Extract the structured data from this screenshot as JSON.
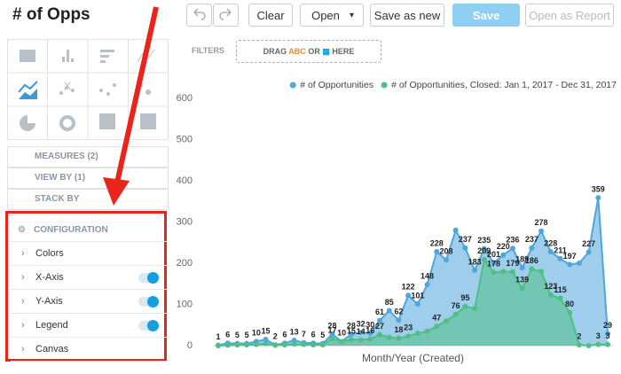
{
  "header": {
    "title": "# of Opps"
  },
  "toolbar": {
    "buttons": [
      "Clear",
      "Open",
      "Save as new",
      "Save",
      "Open as Report"
    ]
  },
  "filters": {
    "label": "FILTERS",
    "drop_hint": [
      "DRAG",
      "ABC",
      "OR",
      "HERE"
    ]
  },
  "sidebar": {
    "sections": [
      "MEASURES (2)",
      "VIEW BY (1)",
      "STACK BY"
    ],
    "configuration": {
      "title": "CONFIGURATION",
      "items": [
        {
          "label": "Colors"
        },
        {
          "label": "X-Axis",
          "toggle": true
        },
        {
          "label": "Y-Axis",
          "toggle": true
        },
        {
          "label": "Legend",
          "toggle": true
        },
        {
          "label": "Canvas"
        }
      ]
    }
  },
  "chart_data": {
    "type": "area",
    "x_title": "Month/Year (Created)",
    "legend": "top-right",
    "grid": false,
    "categories": [
      null,
      null,
      null,
      null,
      null,
      null,
      null,
      null,
      null,
      null,
      null,
      null,
      null,
      null,
      null,
      null,
      null,
      null,
      null,
      null,
      null,
      null,
      null,
      null,
      null,
      null,
      null,
      null,
      null,
      null,
      null,
      null,
      null,
      null,
      null,
      null,
      null,
      null,
      null,
      null,
      null,
      null
    ],
    "ylim": [
      0,
      600
    ],
    "yticks": [
      0,
      100,
      200,
      300,
      400,
      500,
      600
    ],
    "series": [
      {
        "name": "# of Opportunities",
        "color": "#4ea6dc",
        "values": [
          1,
          6,
          5,
          5,
          10,
          15,
          2,
          6,
          13,
          7,
          6,
          5,
          28,
          10,
          28,
          32,
          30,
          61,
          85,
          62,
          122,
          101,
          148,
          228,
          208,
          280,
          237,
          183,
          235,
          201,
          220,
          236,
          189,
          237,
          278,
          228,
          211,
          197,
          200,
          227,
          359,
          29
        ],
        "value_labels": [
          "1",
          "6",
          "5",
          "5",
          "10",
          "15",
          "2",
          "6",
          "13",
          "7",
          "6",
          "5",
          "28",
          "10",
          "28",
          "32",
          "30",
          "61",
          "85",
          "62",
          "122",
          "101",
          "148",
          "228",
          "208",
          null,
          "237",
          "183",
          "235",
          "201",
          "220",
          "236",
          "189",
          "237",
          "278",
          "228",
          "211",
          "197",
          null,
          "227",
          "359",
          "29"
        ]
      },
      {
        "name": "# of Opportunities, Closed: Jan 1, 2017 - Dec 31, 2017",
        "color": "#4fbf85",
        "values": [
          0,
          1,
          2,
          2,
          3,
          5,
          1,
          2,
          4,
          3,
          2,
          2,
          17,
          10,
          15,
          14,
          16,
          27,
          20,
          18,
          23,
          30,
          35,
          47,
          60,
          76,
          95,
          90,
          209,
          178,
          180,
          179,
          139,
          186,
          180,
          123,
          115,
          80,
          2,
          0,
          3,
          3
        ],
        "value_labels": [
          null,
          null,
          null,
          null,
          null,
          null,
          null,
          null,
          null,
          null,
          null,
          null,
          "17",
          null,
          "15",
          "14",
          "16",
          "27",
          null,
          "18",
          "23",
          null,
          null,
          "47",
          null,
          "76",
          "95",
          null,
          "209",
          "178",
          null,
          "179",
          "139",
          "186",
          null,
          "123",
          "115",
          "80",
          "2",
          null,
          "3",
          "3"
        ]
      }
    ]
  }
}
